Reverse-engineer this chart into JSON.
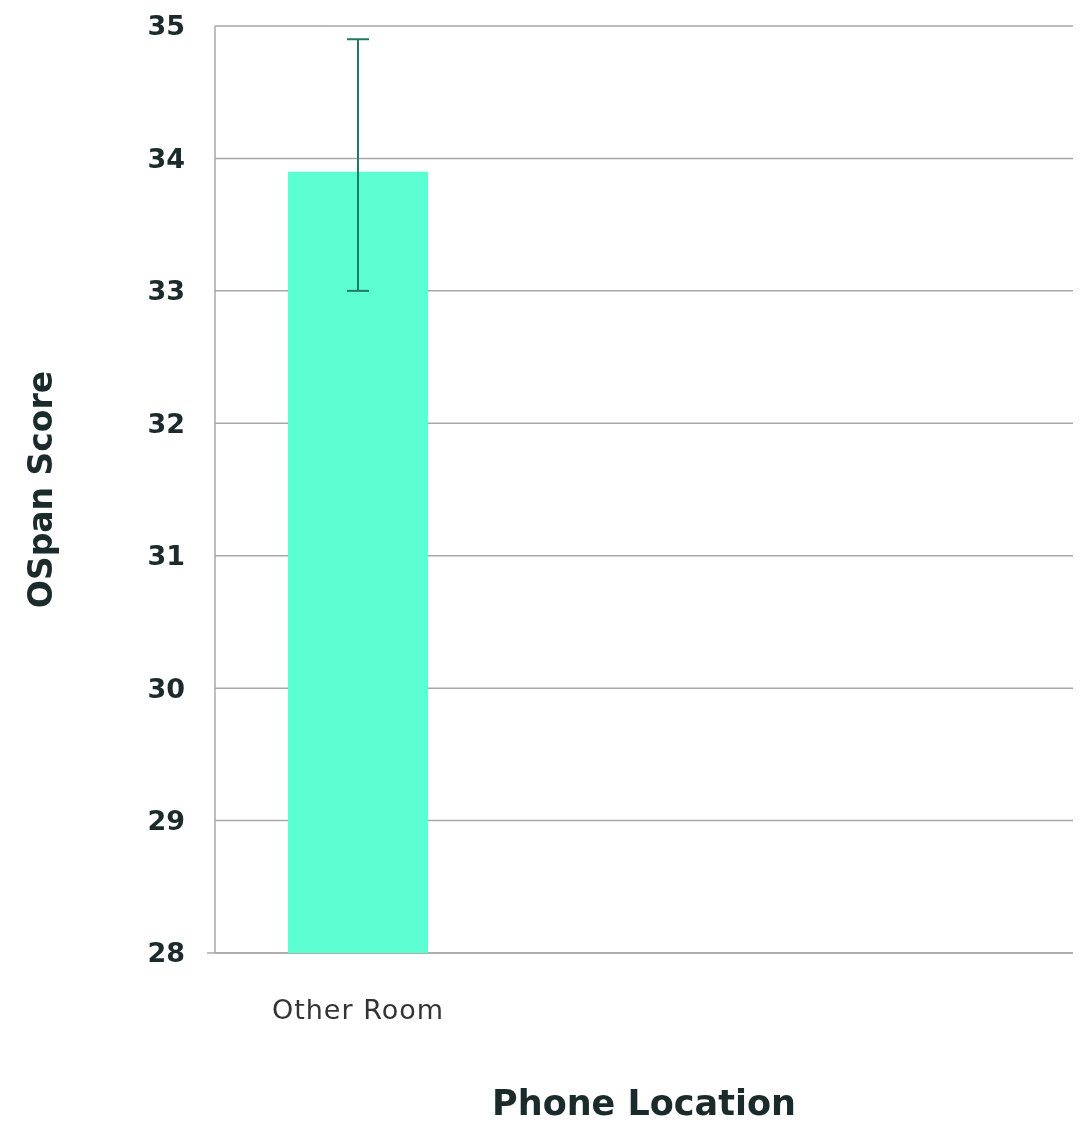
{
  "chart_data": {
    "type": "bar",
    "xlabel": "Phone Location",
    "ylabel": "OSpan Score",
    "categories": [
      "Other Room",
      null,
      null
    ],
    "series": [
      {
        "color": "#5cffd1",
        "values": [
          33.9,
          null,
          null
        ],
        "errors": [
          [
            33.0,
            34.9
          ],
          null,
          null
        ]
      }
    ],
    "ylim": [
      28,
      35
    ],
    "yticks": [
      28,
      29,
      30,
      31,
      32,
      33,
      34,
      35
    ],
    "grid": "y"
  }
}
